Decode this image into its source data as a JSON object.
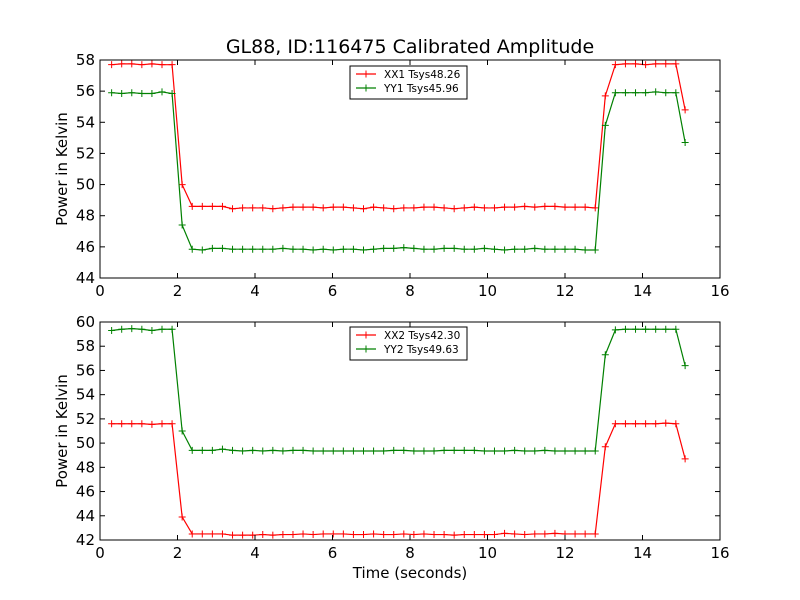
{
  "figure": {
    "title": "GL88, ID:116475 Calibrated Amplitude",
    "xlabel": "Time (seconds)"
  },
  "chart_data": [
    {
      "type": "line",
      "title": "GL88, ID:116475 Calibrated Amplitude",
      "xlabel": "",
      "ylabel": "Power in Kelvin",
      "xlim": [
        0,
        16
      ],
      "ylim": [
        44,
        58
      ],
      "xticks": [
        0,
        2,
        4,
        6,
        8,
        10,
        12,
        14,
        16
      ],
      "yticks": [
        44,
        46,
        48,
        50,
        52,
        54,
        56,
        58
      ],
      "grid": false,
      "legend": "top-center",
      "series": [
        {
          "name": "XX1 Tsys48.26",
          "color": "#ff0000",
          "x": [
            0.3,
            0.56,
            0.82,
            1.08,
            1.34,
            1.6,
            1.86,
            2.12,
            2.38,
            2.64,
            2.9,
            3.16,
            3.42,
            3.68,
            3.94,
            4.2,
            4.46,
            4.72,
            4.98,
            5.24,
            5.5,
            5.76,
            6.02,
            6.28,
            6.54,
            6.8,
            7.06,
            7.32,
            7.58,
            7.84,
            8.1,
            8.36,
            8.62,
            8.88,
            9.14,
            9.4,
            9.66,
            9.92,
            10.18,
            10.44,
            10.7,
            10.96,
            11.22,
            11.48,
            11.74,
            12.0,
            12.26,
            12.52,
            12.78,
            13.04,
            13.3,
            13.56,
            13.82,
            14.08,
            14.34,
            14.6,
            14.86,
            15.1
          ],
          "y": [
            57.7,
            57.75,
            57.75,
            57.7,
            57.75,
            57.7,
            57.7,
            50.0,
            48.6,
            48.6,
            48.6,
            48.6,
            48.45,
            48.5,
            48.5,
            48.5,
            48.45,
            48.5,
            48.55,
            48.55,
            48.55,
            48.5,
            48.55,
            48.55,
            48.5,
            48.45,
            48.55,
            48.5,
            48.45,
            48.5,
            48.5,
            48.55,
            48.55,
            48.5,
            48.45,
            48.5,
            48.55,
            48.5,
            48.5,
            48.55,
            48.55,
            48.6,
            48.55,
            48.6,
            48.6,
            48.55,
            48.55,
            48.55,
            48.5,
            55.7,
            57.7,
            57.75,
            57.75,
            57.7,
            57.75,
            57.75,
            57.75,
            54.8
          ]
        },
        {
          "name": "YY1 Tsys45.96",
          "color": "#008000",
          "x": [
            0.3,
            0.56,
            0.82,
            1.08,
            1.34,
            1.6,
            1.86,
            2.12,
            2.38,
            2.64,
            2.9,
            3.16,
            3.42,
            3.68,
            3.94,
            4.2,
            4.46,
            4.72,
            4.98,
            5.24,
            5.5,
            5.76,
            6.02,
            6.28,
            6.54,
            6.8,
            7.06,
            7.32,
            7.58,
            7.84,
            8.1,
            8.36,
            8.62,
            8.88,
            9.14,
            9.4,
            9.66,
            9.92,
            10.18,
            10.44,
            10.7,
            10.96,
            11.22,
            11.48,
            11.74,
            12.0,
            12.26,
            12.52,
            12.78,
            13.04,
            13.3,
            13.56,
            13.82,
            14.08,
            14.34,
            14.6,
            14.86,
            15.1
          ],
          "y": [
            55.9,
            55.85,
            55.9,
            55.85,
            55.85,
            55.95,
            55.85,
            47.4,
            45.85,
            45.8,
            45.9,
            45.9,
            45.85,
            45.85,
            45.85,
            45.85,
            45.85,
            45.9,
            45.85,
            45.85,
            45.8,
            45.85,
            45.8,
            45.85,
            45.85,
            45.8,
            45.85,
            45.9,
            45.9,
            45.95,
            45.9,
            45.85,
            45.85,
            45.9,
            45.9,
            45.85,
            45.85,
            45.9,
            45.85,
            45.8,
            45.85,
            45.85,
            45.9,
            45.85,
            45.85,
            45.85,
            45.85,
            45.8,
            45.8,
            53.8,
            55.9,
            55.9,
            55.9,
            55.9,
            55.95,
            55.9,
            55.9,
            52.7
          ]
        }
      ]
    },
    {
      "type": "line",
      "title": "",
      "xlabel": "Time (seconds)",
      "ylabel": "Power in Kelvin",
      "xlim": [
        0,
        16
      ],
      "ylim": [
        42,
        60
      ],
      "xticks": [
        0,
        2,
        4,
        6,
        8,
        10,
        12,
        14,
        16
      ],
      "yticks": [
        42,
        44,
        46,
        48,
        50,
        52,
        54,
        56,
        58,
        60
      ],
      "grid": false,
      "legend": "top-center",
      "series": [
        {
          "name": "XX2 Tsys42.30",
          "color": "#ff0000",
          "x": [
            0.3,
            0.56,
            0.82,
            1.08,
            1.34,
            1.6,
            1.86,
            2.12,
            2.38,
            2.64,
            2.9,
            3.16,
            3.42,
            3.68,
            3.94,
            4.2,
            4.46,
            4.72,
            4.98,
            5.24,
            5.5,
            5.76,
            6.02,
            6.28,
            6.54,
            6.8,
            7.06,
            7.32,
            7.58,
            7.84,
            8.1,
            8.36,
            8.62,
            8.88,
            9.14,
            9.4,
            9.66,
            9.92,
            10.18,
            10.44,
            10.7,
            10.96,
            11.22,
            11.48,
            11.74,
            12.0,
            12.26,
            12.52,
            12.78,
            13.04,
            13.3,
            13.56,
            13.82,
            14.08,
            14.34,
            14.6,
            14.86,
            15.1
          ],
          "y": [
            51.6,
            51.6,
            51.6,
            51.6,
            51.55,
            51.6,
            51.6,
            43.9,
            42.5,
            42.5,
            42.5,
            42.5,
            42.4,
            42.4,
            42.4,
            42.45,
            42.4,
            42.45,
            42.45,
            42.5,
            42.45,
            42.5,
            42.5,
            42.5,
            42.45,
            42.45,
            42.5,
            42.45,
            42.45,
            42.5,
            42.45,
            42.5,
            42.45,
            42.45,
            42.4,
            42.45,
            42.45,
            42.45,
            42.45,
            42.55,
            42.5,
            42.45,
            42.5,
            42.5,
            42.55,
            42.5,
            42.5,
            42.5,
            42.5,
            49.7,
            51.6,
            51.6,
            51.6,
            51.6,
            51.6,
            51.65,
            51.6,
            48.7
          ]
        },
        {
          "name": "YY2 Tsys49.63",
          "color": "#008000",
          "x": [
            0.3,
            0.56,
            0.82,
            1.08,
            1.34,
            1.6,
            1.86,
            2.12,
            2.38,
            2.64,
            2.9,
            3.16,
            3.42,
            3.68,
            3.94,
            4.2,
            4.46,
            4.72,
            4.98,
            5.24,
            5.5,
            5.76,
            6.02,
            6.28,
            6.54,
            6.8,
            7.06,
            7.32,
            7.58,
            7.84,
            8.1,
            8.36,
            8.62,
            8.88,
            9.14,
            9.4,
            9.66,
            9.92,
            10.18,
            10.44,
            10.7,
            10.96,
            11.22,
            11.48,
            11.74,
            12.0,
            12.26,
            12.52,
            12.78,
            13.04,
            13.3,
            13.56,
            13.82,
            14.08,
            14.34,
            14.6,
            14.86,
            15.1
          ],
          "y": [
            59.3,
            59.4,
            59.45,
            59.4,
            59.3,
            59.4,
            59.4,
            51.0,
            49.4,
            49.4,
            49.4,
            49.5,
            49.4,
            49.35,
            49.4,
            49.35,
            49.4,
            49.35,
            49.4,
            49.4,
            49.35,
            49.35,
            49.35,
            49.35,
            49.35,
            49.35,
            49.35,
            49.35,
            49.4,
            49.4,
            49.35,
            49.35,
            49.35,
            49.4,
            49.4,
            49.4,
            49.4,
            49.35,
            49.35,
            49.35,
            49.4,
            49.35,
            49.35,
            49.4,
            49.35,
            49.35,
            49.35,
            49.35,
            49.35,
            57.3,
            59.35,
            59.4,
            59.4,
            59.4,
            59.4,
            59.4,
            59.4,
            56.4
          ]
        }
      ]
    }
  ]
}
